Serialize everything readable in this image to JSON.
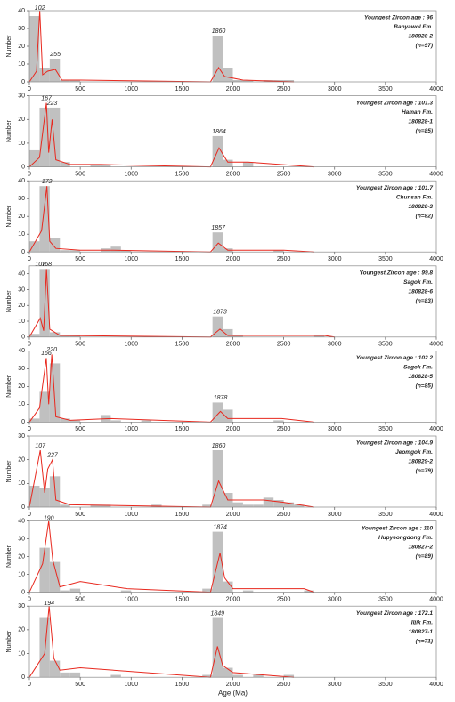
{
  "chart_data": [
    {
      "type": "histogram",
      "ylabel": "Number",
      "color": "#c0c0c0",
      "annotation_colors": [
        "#2b3f9e",
        "#111111"
      ],
      "annotations": [
        "Youngest Zircon age : 96",
        "Banyawol Fm.",
        "180828-2",
        "(n=97)"
      ],
      "peaks": [
        102,
        255,
        1860
      ],
      "bins": [
        0,
        100,
        200,
        300,
        400,
        500,
        600,
        700,
        800,
        900,
        1000,
        1100,
        1200,
        1300,
        1400,
        1500,
        1600,
        1700,
        1800,
        1900,
        2000,
        2100,
        2200,
        2300,
        2400,
        2500,
        2600,
        2700,
        2800,
        2900,
        3000
      ],
      "values": [
        37,
        8,
        13,
        1,
        1,
        0,
        0,
        0,
        0,
        0,
        0,
        0,
        0,
        0,
        0,
        0,
        0,
        0,
        26,
        8,
        1,
        1,
        0,
        1,
        1,
        1,
        0,
        0,
        0,
        0
      ],
      "curve": {
        "color": "#e8281e",
        "x": [
          0,
          70,
          102,
          130,
          180,
          255,
          320,
          500,
          1780,
          1860,
          1920,
          2100,
          2600
        ],
        "values": [
          0,
          6,
          40,
          4,
          6,
          7,
          1,
          1,
          0,
          8,
          3,
          1,
          0
        ]
      },
      "xlim": [
        0,
        4000
      ],
      "xticks": [
        0,
        500,
        1000,
        1500,
        2000,
        2500,
        3000,
        3500,
        4000
      ],
      "ylim": [
        0,
        40
      ],
      "yticks": [
        0,
        10,
        20,
        30,
        40
      ]
    },
    {
      "type": "histogram",
      "ylabel": "Number",
      "color": "#c0c0c0",
      "annotation_colors": [
        "#2b3f9e",
        "#111111"
      ],
      "annotations": [
        "Youngest Zircon age : 101.3",
        "Haman Fm.",
        "180828-1",
        "(n=85)"
      ],
      "peaks": [
        167,
        223,
        1864
      ],
      "bins": [
        0,
        100,
        200,
        300,
        400,
        500,
        600,
        700,
        800,
        900,
        1000,
        1100,
        1200,
        1300,
        1400,
        1500,
        1600,
        1700,
        1800,
        1900,
        2000,
        2100,
        2200,
        2300,
        2400,
        2500,
        2600,
        2700,
        2800,
        2900,
        3000
      ],
      "values": [
        7,
        25,
        25,
        2,
        0,
        0,
        1,
        1,
        0,
        0,
        0,
        0,
        0,
        0,
        0,
        0,
        0,
        0,
        13,
        3,
        0,
        2,
        0,
        0,
        0,
        0,
        0,
        0,
        0,
        0
      ],
      "curve": {
        "color": "#e8281e",
        "x": [
          0,
          100,
          167,
          190,
          223,
          260,
          400,
          700,
          1780,
          1864,
          1950,
          2150,
          2800
        ],
        "values": [
          0,
          4,
          27,
          6,
          20,
          3,
          1,
          1,
          0,
          8,
          2,
          2,
          0
        ]
      },
      "xlim": [
        0,
        4000
      ],
      "xticks": [
        0,
        500,
        1000,
        1500,
        2000,
        2500,
        3000,
        3500,
        4000
      ],
      "ylim": [
        0,
        30
      ],
      "yticks": [
        0,
        10,
        20,
        30
      ]
    },
    {
      "type": "histogram",
      "ylabel": "Number",
      "color": "#c0c0c0",
      "annotation_colors": [
        "#2b3f9e",
        "#111111"
      ],
      "annotations": [
        "Youngest Zircon age : 101.7",
        "Chunsan Fm.",
        "180828-3",
        "(n=82)"
      ],
      "peaks": [
        172,
        1857
      ],
      "bins": [
        0,
        100,
        200,
        300,
        400,
        500,
        600,
        700,
        800,
        900,
        1000,
        1100,
        1200,
        1300,
        1400,
        1500,
        1600,
        1700,
        1800,
        1900,
        2000,
        2100,
        2200,
        2300,
        2400,
        2500,
        2600,
        2700,
        2800,
        2900,
        3000
      ],
      "values": [
        6,
        37,
        8,
        1,
        1,
        0,
        0,
        2,
        3,
        1,
        0,
        0,
        0,
        0,
        0,
        0,
        0,
        0,
        11,
        2,
        0,
        0,
        0,
        0,
        1,
        0,
        0,
        0,
        0,
        0
      ],
      "curve": {
        "color": "#e8281e",
        "x": [
          0,
          120,
          172,
          200,
          260,
          500,
          800,
          1780,
          1857,
          1950,
          2500,
          2800
        ],
        "values": [
          0,
          12,
          37,
          6,
          2,
          1,
          1,
          0,
          5,
          1,
          1,
          0
        ]
      },
      "xlim": [
        0,
        4000
      ],
      "xticks": [
        0,
        500,
        1000,
        1500,
        2000,
        2500,
        3000,
        3500,
        4000
      ],
      "ylim": [
        0,
        40
      ],
      "yticks": [
        0,
        10,
        20,
        30,
        40
      ]
    },
    {
      "type": "histogram",
      "ylabel": "Number",
      "color": "#c0c0c0",
      "annotation_colors": [
        "#2b3f9e",
        "#111111"
      ],
      "annotations": [
        "Youngest Zircon age : 99.8",
        "Sagok Fm.",
        "180828-6",
        "(n=83)"
      ],
      "peaks": [
        107,
        168,
        1873
      ],
      "bins": [
        0,
        100,
        200,
        300,
        400,
        500,
        600,
        700,
        800,
        900,
        1000,
        1100,
        1200,
        1300,
        1400,
        1500,
        1600,
        1700,
        1800,
        1900,
        2000,
        2100,
        2200,
        2300,
        2400,
        2500,
        2600,
        2700,
        2800,
        2900,
        3000
      ],
      "values": [
        2,
        43,
        3,
        1,
        1,
        0,
        0,
        0,
        0,
        0,
        0,
        0,
        0,
        0,
        0,
        0,
        0,
        0,
        13,
        5,
        1,
        0,
        0,
        0,
        0,
        0,
        0,
        0,
        1,
        0
      ],
      "curve": {
        "color": "#e8281e",
        "x": [
          0,
          107,
          140,
          168,
          200,
          300,
          1780,
          1873,
          1950,
          2900,
          3000
        ],
        "values": [
          0,
          12,
          4,
          43,
          5,
          1,
          0,
          5,
          1,
          1,
          0
        ]
      },
      "xlim": [
        0,
        4000
      ],
      "xticks": [
        0,
        500,
        1000,
        1500,
        2000,
        2500,
        3000,
        3500,
        4000
      ],
      "ylim": [
        0,
        45
      ],
      "yticks": [
        0,
        10,
        20,
        30,
        40
      ]
    },
    {
      "type": "histogram",
      "ylabel": "Number",
      "color": "#c0c0c0",
      "annotation_colors": [
        "#2b3f9e",
        "#111111"
      ],
      "annotations": [
        "Youngest Zircon age : 102.2",
        "Sagok Fm.",
        "180828-5",
        "(n=85)"
      ],
      "peaks": [
        166,
        220,
        1878
      ],
      "bins": [
        0,
        100,
        200,
        300,
        400,
        500,
        600,
        700,
        800,
        900,
        1000,
        1100,
        1200,
        1300,
        1400,
        1500,
        1600,
        1700,
        1800,
        1900,
        2000,
        2100,
        2200,
        2300,
        2400,
        2500,
        2600,
        2700,
        2800,
        2900,
        3000
      ],
      "values": [
        2,
        17,
        33,
        2,
        1,
        0,
        0,
        4,
        1,
        0,
        0,
        1,
        0,
        0,
        0,
        0,
        0,
        0,
        11,
        7,
        0,
        0,
        0,
        0,
        1,
        0,
        0,
        0,
        0,
        0
      ],
      "curve": {
        "color": "#e8281e",
        "x": [
          0,
          100,
          166,
          190,
          220,
          260,
          400,
          800,
          1780,
          1878,
          1950,
          2480,
          2800
        ],
        "values": [
          0,
          8,
          36,
          10,
          38,
          3,
          1,
          2,
          0,
          6,
          2,
          2,
          0
        ]
      },
      "xlim": [
        0,
        4000
      ],
      "xticks": [
        0,
        500,
        1000,
        1500,
        2000,
        2500,
        3000,
        3500,
        4000
      ],
      "ylim": [
        0,
        40
      ],
      "yticks": [
        0,
        10,
        20,
        30,
        40
      ]
    },
    {
      "type": "histogram",
      "ylabel": "Number",
      "color": "#c0c0c0",
      "annotation_colors": [
        "#2b3f9e",
        "#111111"
      ],
      "annotations": [
        "Youngest Zircon age : 104.9",
        "Jeomgok Fm.",
        "180829-2",
        "(n=79)"
      ],
      "peaks": [
        107,
        227,
        1860
      ],
      "bins": [
        0,
        100,
        200,
        300,
        400,
        500,
        600,
        700,
        800,
        900,
        1000,
        1100,
        1200,
        1300,
        1400,
        1500,
        1600,
        1700,
        1800,
        1900,
        2000,
        2100,
        2200,
        2300,
        2400,
        2500,
        2600,
        2700,
        2800,
        2900,
        3000
      ],
      "values": [
        9,
        8,
        13,
        1,
        0,
        0,
        1,
        1,
        0,
        0,
        0,
        0,
        1,
        0,
        0,
        0,
        0,
        1,
        24,
        6,
        2,
        1,
        1,
        4,
        3,
        2,
        1,
        0,
        0,
        0
      ],
      "curve": {
        "color": "#e8281e",
        "x": [
          0,
          107,
          150,
          180,
          227,
          260,
          400,
          1780,
          1860,
          1950,
          2300,
          2500,
          2800
        ],
        "values": [
          0,
          24,
          6,
          16,
          20,
          3,
          1,
          0,
          11,
          3,
          3,
          2,
          0
        ]
      },
      "xlim": [
        0,
        4000
      ],
      "xticks": [
        0,
        500,
        1000,
        1500,
        2000,
        2500,
        3000,
        3500,
        4000
      ],
      "ylim": [
        0,
        30
      ],
      "yticks": [
        0,
        10,
        20,
        30
      ]
    },
    {
      "type": "histogram",
      "ylabel": "Number",
      "color": "#c0c0c0",
      "annotation_colors": [
        "#2b3f9e",
        "#111111"
      ],
      "annotations": [
        "Youngest Zircon age : 110",
        "Hupyeongdong Fm.",
        "180827-2",
        "(n=89)"
      ],
      "peaks": [
        190,
        1874
      ],
      "bins": [
        0,
        100,
        200,
        300,
        400,
        500,
        600,
        700,
        800,
        900,
        1000,
        1100,
        1200,
        1300,
        1400,
        1500,
        1600,
        1700,
        1800,
        1900,
        2000,
        2100,
        2200,
        2300,
        2400,
        2500,
        2600,
        2700,
        2800,
        2900,
        3000
      ],
      "values": [
        0,
        25,
        17,
        1,
        2,
        0,
        0,
        0,
        0,
        1,
        0,
        0,
        0,
        0,
        0,
        0,
        0,
        2,
        34,
        6,
        0,
        1,
        0,
        0,
        0,
        0,
        0,
        1,
        0,
        0
      ],
      "curve": {
        "color": "#e8281e",
        "x": [
          0,
          130,
          190,
          230,
          300,
          500,
          960,
          1780,
          1874,
          1920,
          2000,
          2700,
          2800
        ],
        "values": [
          0,
          16,
          40,
          18,
          3,
          6,
          2,
          0,
          22,
          8,
          2,
          2,
          0
        ]
      },
      "xlim": [
        0,
        4000
      ],
      "xticks": [
        0,
        500,
        1000,
        1500,
        2000,
        2500,
        3000,
        3500,
        4000
      ],
      "ylim": [
        0,
        40
      ],
      "yticks": [
        0,
        10,
        20,
        30,
        40
      ]
    },
    {
      "type": "histogram",
      "ylabel": "Number",
      "xlabel": "Age (Ma)",
      "color": "#c0c0c0",
      "annotation_colors": [
        "#2b3f9e",
        "#111111"
      ],
      "annotations": [
        "Youngest Zircon age : 172.1",
        "Iljik Fm.",
        "180827-1",
        "(n=71)"
      ],
      "peaks": [
        194,
        1849
      ],
      "bins": [
        0,
        100,
        200,
        300,
        400,
        500,
        600,
        700,
        800,
        900,
        1000,
        1100,
        1200,
        1300,
        1400,
        1500,
        1600,
        1700,
        1800,
        1900,
        2000,
        2100,
        2200,
        2300,
        2400,
        2500,
        2600,
        2700,
        2800,
        2900,
        3000
      ],
      "values": [
        0,
        25,
        7,
        2,
        2,
        0,
        0,
        0,
        1,
        0,
        0,
        0,
        0,
        0,
        0,
        0,
        0,
        1,
        25,
        4,
        1,
        0,
        1,
        0,
        0,
        1,
        0,
        0,
        0,
        0
      ],
      "curve": {
        "color": "#e8281e",
        "x": [
          0,
          150,
          194,
          240,
          300,
          500,
          1780,
          1849,
          1900,
          2000,
          2600
        ],
        "values": [
          0,
          10,
          30,
          8,
          3,
          4,
          0,
          13,
          5,
          2,
          0
        ]
      },
      "xlim": [
        0,
        4000
      ],
      "xticks": [
        0,
        500,
        1000,
        1500,
        2000,
        2500,
        3000,
        3500,
        4000
      ],
      "ylim": [
        0,
        30
      ],
      "yticks": [
        0,
        10,
        20,
        30
      ]
    }
  ]
}
